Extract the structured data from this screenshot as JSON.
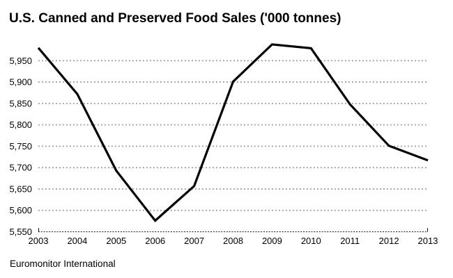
{
  "colors": {
    "line": "#000000",
    "grid": "#9a9a9a",
    "axis": "#1a1a1a",
    "text": "#000000",
    "background": "#ffffff"
  },
  "source": "Euromonitor International",
  "chart_data": {
    "type": "line",
    "title": "U.S. Canned and Preserved Food Sales ('000 tonnes)",
    "source": "Euromonitor International",
    "x": [
      2003,
      2004,
      2005,
      2006,
      2007,
      2008,
      2009,
      2010,
      2011,
      2012,
      2013
    ],
    "x_labels": [
      "2003",
      "2004",
      "2005",
      "2006",
      "2007",
      "2008",
      "2009",
      "2010",
      "2011",
      "2012",
      "2013"
    ],
    "values": [
      5980,
      5872,
      5693,
      5576,
      5657,
      5901,
      5988,
      5979,
      5848,
      5751,
      5717
    ],
    "xlabel": "",
    "ylabel": "",
    "ylim": [
      5550,
      6000
    ],
    "yticks": [
      5550,
      5600,
      5650,
      5700,
      5750,
      5800,
      5850,
      5900,
      5950
    ],
    "ytick_labels": [
      "5,550",
      "5,600",
      "5,650",
      "5,700",
      "5,750",
      "5,800",
      "5,850",
      "5,900",
      "5,950"
    ],
    "grid": "horizontal-dotted",
    "legend": "none"
  }
}
